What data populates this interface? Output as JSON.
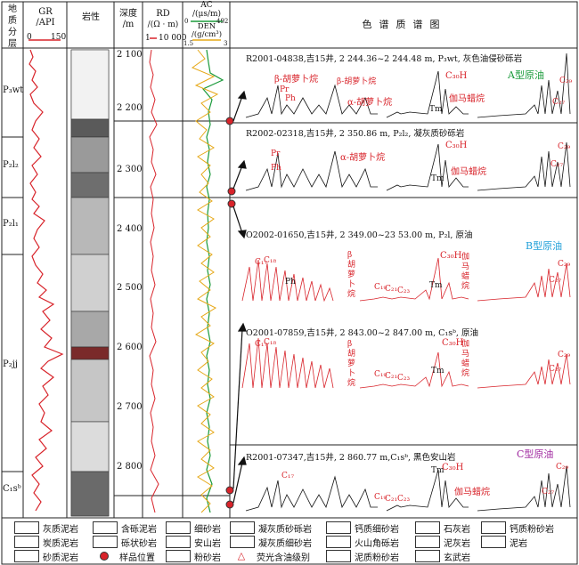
{
  "headers": {
    "strat": "地质分层",
    "gr": "GR",
    "gr_unit": "/API",
    "gr_min": "0",
    "gr_max": "150",
    "lith": "岩性",
    "depth": "深度",
    "depth_unit": "/m",
    "rd": "RD",
    "rd_unit": "/(Ω · m)",
    "rd_min": "1",
    "rd_max": "10 000",
    "ac": "AC",
    "ac_unit": "/(μs/m)",
    "ac_min": "0",
    "ac_max": "492",
    "den": "DEN",
    "den_unit": "/(g/cm³)",
    "den_min": "1.5",
    "den_max": "3",
    "spectrum": "色谱质谱图"
  },
  "strata": [
    {
      "label": "P₃wt"
    },
    {
      "label": "P₂l₂"
    },
    {
      "label": "P₂l₁"
    },
    {
      "label": "P₂jj"
    },
    {
      "label": "C₁sᵇ"
    }
  ],
  "depth_ticks": [
    "2 100",
    "2 200",
    "2 300",
    "2 400",
    "2 500",
    "2 600",
    "2 700",
    "2 800"
  ],
  "samples": [
    {
      "title": "R2001-04838,吉15井, 2 244.36~2 244.48 m, P₃wt, 灰色油侵砂砾岩",
      "type_label": "A型原油"
    },
    {
      "title": "R2002-02318,吉15井, 2 350.86 m, P₂l₂, 凝灰质砂砾岩",
      "type_label": ""
    },
    {
      "title": "O2002-01650,吉15井, 2 349.00~23 53.00 m, P₂l, 原油",
      "type_label": "B型原油"
    },
    {
      "title": "O2001-07859,吉15井, 2 843.00~2 847.00 m, C₁sᵇ, 原油",
      "type_label": ""
    },
    {
      "title": "R2001-07347,吉15井, 2 860.77 m,C₁sᵇ, 黑色安山岩",
      "type_label": "C型原油"
    }
  ],
  "peak_labels": {
    "pr": "Pr",
    "ph": "Ph",
    "c17": "C₁₇",
    "c18": "C₁₈",
    "beta": "β-胡萝卜烷",
    "alpha": "α-胡萝卜烷",
    "beta_v": "β胡萝卜烷",
    "gam": "伽马蜡烷",
    "gam_v": "伽马蜡烷",
    "tm": "Tm",
    "c30h": "C₃₀H",
    "c19": "C₁₉",
    "c21": "C₂₁",
    "c23": "C₂₃",
    "c27": "C₂₇",
    "c29": "C₂₉"
  },
  "legend": [
    {
      "label": "灰质泥岩"
    },
    {
      "label": "含砾泥岩"
    },
    {
      "label": "细砂岩"
    },
    {
      "label": "凝灰质砂砾岩"
    },
    {
      "label": "钙质细砂岩"
    },
    {
      "label": "石灰岩"
    },
    {
      "label": "钙质粉砂岩"
    },
    {
      "label": "炭质泥岩"
    },
    {
      "label": "砾状砂岩"
    },
    {
      "label": "安山岩"
    },
    {
      "label": "凝灰质细砂岩"
    },
    {
      "label": "火山角砾岩"
    },
    {
      "label": "泥灰岩"
    },
    {
      "label": "泥岩"
    },
    {
      "label": "砂质泥岩"
    },
    {
      "label": "样品位置"
    },
    {
      "label": "粉砂岩"
    },
    {
      "label": "荧光含油级别"
    },
    {
      "label": "泥质粉砂岩"
    },
    {
      "label": "玄武岩"
    }
  ],
  "colors": {
    "red": "#d8232a",
    "green": "#1a9a3a",
    "orange": "#e6a817",
    "blue": "#1f9fd8",
    "black": "#111111"
  }
}
